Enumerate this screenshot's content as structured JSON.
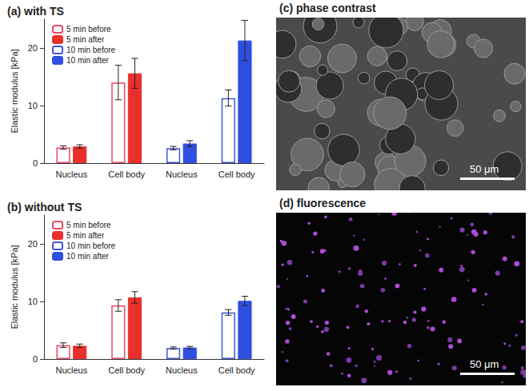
{
  "chart_data": [
    {
      "type": "bar",
      "title": "(a) with TS",
      "y_label": "Elastic modulus [kPa]",
      "categories": [
        "Nucleus",
        "Cell body",
        "Nucleus",
        "Cell body"
      ],
      "ylim": [
        0,
        25
      ],
      "yticks": [
        0,
        10,
        20
      ],
      "grid": false,
      "legend": "top-left",
      "series": [
        {
          "name": "5 min before",
          "color": "#e8486a",
          "marker": "open",
          "values": [
            2.7,
            14.0,
            null,
            null
          ],
          "errors": [
            0.3,
            3.0,
            null,
            null
          ]
        },
        {
          "name": "5 min after",
          "color": "#e8302c",
          "marker": "filled",
          "values": [
            2.9,
            15.6,
            null,
            null
          ],
          "errors": [
            0.3,
            2.6,
            null,
            null
          ]
        },
        {
          "name": "10 min before",
          "color": "#3f55d8",
          "marker": "open",
          "values": [
            null,
            null,
            2.6,
            11.3
          ],
          "errors": [
            null,
            null,
            0.3,
            1.4
          ]
        },
        {
          "name": "10 min after",
          "color": "#2f4fe0",
          "marker": "filled",
          "values": [
            null,
            null,
            3.4,
            21.3
          ],
          "errors": [
            null,
            null,
            0.5,
            3.5
          ]
        }
      ]
    },
    {
      "type": "bar",
      "title": "(b) without TS",
      "y_label": "Elastic modulus [kPa]",
      "categories": [
        "Nucleus",
        "Cell body",
        "Nucleus",
        "Cell body"
      ],
      "ylim": [
        0,
        25
      ],
      "yticks": [
        0,
        10,
        20
      ],
      "grid": false,
      "legend": "top-left",
      "series": [
        {
          "name": "5 min before",
          "color": "#e8486a",
          "marker": "open",
          "values": [
            2.4,
            9.3,
            null,
            null
          ],
          "errors": [
            0.4,
            1.0,
            null,
            null
          ]
        },
        {
          "name": "5 min after",
          "color": "#e8302c",
          "marker": "filled",
          "values": [
            2.3,
            10.7,
            null,
            null
          ],
          "errors": [
            0.3,
            1.0,
            null,
            null
          ]
        },
        {
          "name": "10 min before",
          "color": "#3f55d8",
          "marker": "open",
          "values": [
            null,
            null,
            1.9,
            8.1
          ],
          "errors": [
            null,
            null,
            0.2,
            0.5
          ]
        },
        {
          "name": "10 min after",
          "color": "#2f4fe0",
          "marker": "filled",
          "values": [
            null,
            null,
            2.0,
            10.1
          ],
          "errors": [
            null,
            null,
            0.2,
            0.8
          ]
        }
      ]
    }
  ],
  "images": [
    {
      "title": "(c) phase contrast",
      "kind": "phase contrast",
      "scale_bar": "50 μm"
    },
    {
      "title": "(d) fluorescence",
      "kind": "fluorescence",
      "scale_bar": "50 μm"
    }
  ]
}
